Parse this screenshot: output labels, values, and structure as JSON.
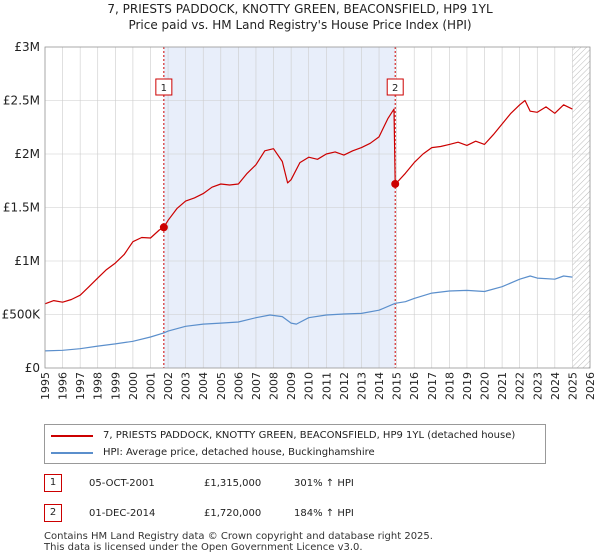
{
  "chart_data": {
    "type": "line",
    "title": "7, PRIESTS PADDOCK, KNOTTY GREEN, BEACONSFIELD, HP9 1YL",
    "subtitle": "Price paid vs. HM Land Registry's House Price Index (HPI)",
    "xlim": [
      1995,
      2026
    ],
    "ylim": [
      0,
      3000000
    ],
    "x_ticks": [
      1995,
      1996,
      1997,
      1998,
      1999,
      2000,
      2001,
      2002,
      2003,
      2004,
      2005,
      2006,
      2007,
      2008,
      2009,
      2010,
      2011,
      2012,
      2013,
      2014,
      2015,
      2016,
      2017,
      2018,
      2019,
      2020,
      2021,
      2022,
      2023,
      2024,
      2025,
      2026
    ],
    "y_ticks": [
      {
        "value": 0,
        "label": "£0"
      },
      {
        "value": 500000,
        "label": "£500K"
      },
      {
        "value": 1000000,
        "label": "£1M"
      },
      {
        "value": 1500000,
        "label": "£1.5M"
      },
      {
        "value": 2000000,
        "label": "£2M"
      },
      {
        "value": 2500000,
        "label": "£2.5M"
      },
      {
        "value": 3000000,
        "label": "£3M"
      }
    ],
    "shaded_ranges": [
      [
        2001.76,
        2014.92
      ]
    ],
    "forecast_start": 2025.0,
    "series": [
      {
        "name": "7, PRIESTS PADDOCK, KNOTTY GREEN, BEACONSFIELD, HP9 1YL (detached house)",
        "color": "#cc0000",
        "x": [
          1995.0,
          1995.5,
          1996.0,
          1996.5,
          1997.0,
          1997.5,
          1998.0,
          1998.5,
          1999.0,
          1999.5,
          2000.0,
          2000.5,
          2001.0,
          2001.5,
          2001.76,
          2002.0,
          2002.5,
          2003.0,
          2003.5,
          2004.0,
          2004.5,
          2005.0,
          2005.5,
          2006.0,
          2006.5,
          2007.0,
          2007.5,
          2008.0,
          2008.5,
          2008.8,
          2009.0,
          2009.5,
          2010.0,
          2010.5,
          2011.0,
          2011.5,
          2012.0,
          2012.5,
          2013.0,
          2013.5,
          2014.0,
          2014.5,
          2014.85,
          2014.92,
          2015.0,
          2015.5,
          2016.0,
          2016.5,
          2017.0,
          2017.5,
          2018.0,
          2018.5,
          2019.0,
          2019.5,
          2020.0,
          2020.5,
          2021.0,
          2021.5,
          2022.0,
          2022.3,
          2022.6,
          2023.0,
          2023.5,
          2024.0,
          2024.5,
          2025.0
        ],
        "y": [
          600000,
          630000,
          615000,
          640000,
          680000,
          760000,
          840000,
          920000,
          980000,
          1060000,
          1180000,
          1220000,
          1215000,
          1290000,
          1315000,
          1380000,
          1490000,
          1560000,
          1590000,
          1630000,
          1690000,
          1720000,
          1710000,
          1720000,
          1820000,
          1900000,
          2030000,
          2050000,
          1930000,
          1730000,
          1760000,
          1920000,
          1970000,
          1950000,
          2000000,
          2020000,
          1990000,
          2030000,
          2060000,
          2100000,
          2160000,
          2330000,
          2420000,
          1720000,
          1730000,
          1820000,
          1920000,
          2000000,
          2060000,
          2070000,
          2090000,
          2110000,
          2080000,
          2120000,
          2090000,
          2180000,
          2280000,
          2380000,
          2460000,
          2500000,
          2400000,
          2390000,
          2440000,
          2380000,
          2460000,
          2420000
        ]
      },
      {
        "name": "HPI: Average price, detached house, Buckinghamshire",
        "color": "#5b8fcc",
        "x": [
          1995.0,
          1996.0,
          1997.0,
          1998.0,
          1999.0,
          2000.0,
          2001.0,
          2001.76,
          2002.0,
          2003.0,
          2004.0,
          2005.0,
          2006.0,
          2007.0,
          2007.8,
          2008.5,
          2009.0,
          2009.3,
          2010.0,
          2011.0,
          2012.0,
          2013.0,
          2014.0,
          2014.92,
          2015.5,
          2016.0,
          2017.0,
          2018.0,
          2019.0,
          2020.0,
          2021.0,
          2022.0,
          2022.6,
          2023.0,
          2024.0,
          2024.5,
          2025.0
        ],
        "y": [
          160000,
          165000,
          180000,
          205000,
          225000,
          250000,
          290000,
          328000,
          345000,
          390000,
          410000,
          420000,
          430000,
          470000,
          495000,
          480000,
          420000,
          410000,
          470000,
          495000,
          505000,
          510000,
          540000,
          605000,
          620000,
          650000,
          700000,
          720000,
          725000,
          715000,
          760000,
          830000,
          860000,
          840000,
          830000,
          860000,
          850000
        ]
      }
    ],
    "transactions": [
      {
        "marker": "1",
        "x": 2001.76,
        "y": 1315000,
        "date": "05-OCT-2001",
        "price": "£1,315,000",
        "hpi": "301% ↑ HPI"
      },
      {
        "marker": "2",
        "x": 2014.92,
        "y": 1720000,
        "date": "01-DEC-2014",
        "price": "£1,720,000",
        "hpi": "184% ↑ HPI"
      }
    ]
  },
  "legend": {
    "red_label": "7, PRIESTS PADDOCK, KNOTTY GREEN, BEACONSFIELD, HP9 1YL (detached house)",
    "blue_label": "HPI: Average price, detached house, Buckinghamshire"
  },
  "footer": {
    "line1": "Contains HM Land Registry data © Crown copyright and database right 2025.",
    "line2": "This data is licensed under the Open Government Licence v3.0."
  },
  "colors": {
    "red": "#cc0000",
    "blue": "#5b8fcc",
    "shade": "#e8eefa",
    "grid": "#cccccc"
  }
}
